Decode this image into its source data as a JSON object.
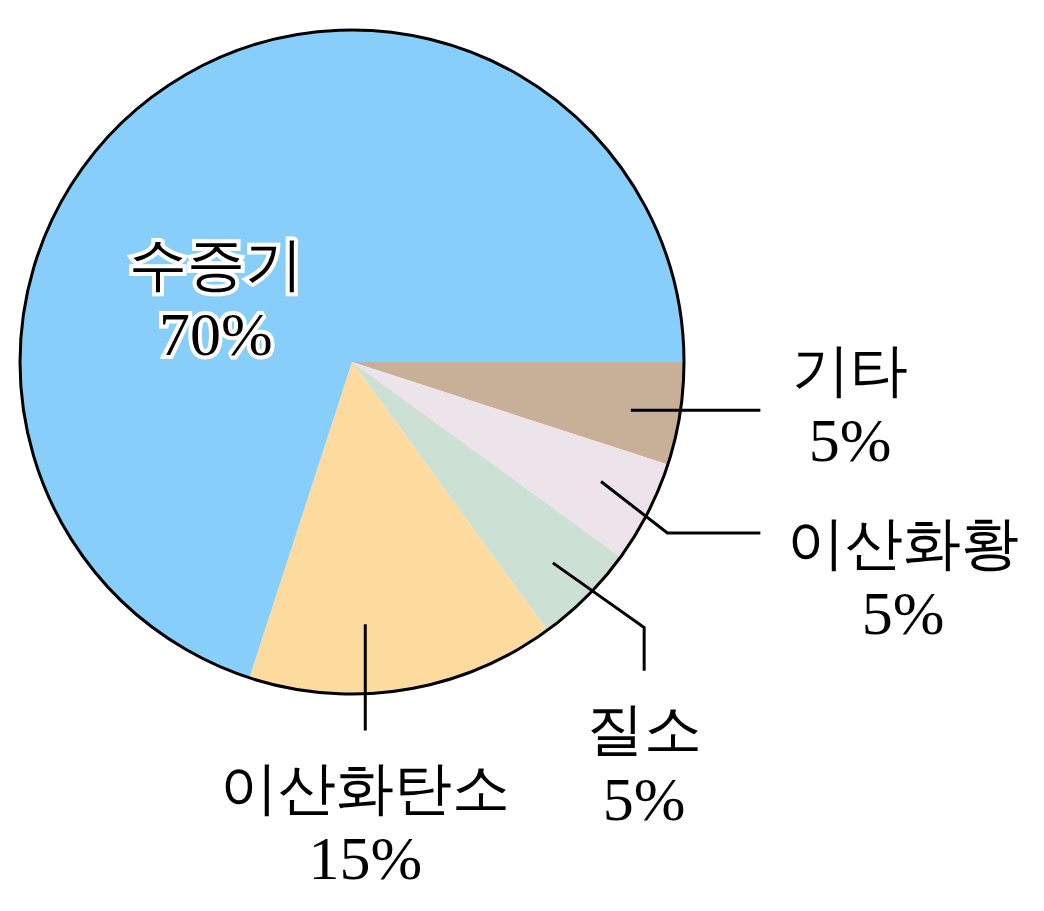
{
  "chart_data": {
    "type": "pie",
    "categories": [
      "기타",
      "이산화황",
      "질소",
      "이산화탄소",
      "수증기"
    ],
    "values": [
      5,
      5,
      5,
      15,
      70
    ],
    "value_labels": [
      "5%",
      "5%",
      "5%",
      "15%",
      "70%"
    ],
    "colors": [
      "#c8b098",
      "#ede3ea",
      "#cde0d4",
      "#fddb9e",
      "#87cefa"
    ]
  }
}
